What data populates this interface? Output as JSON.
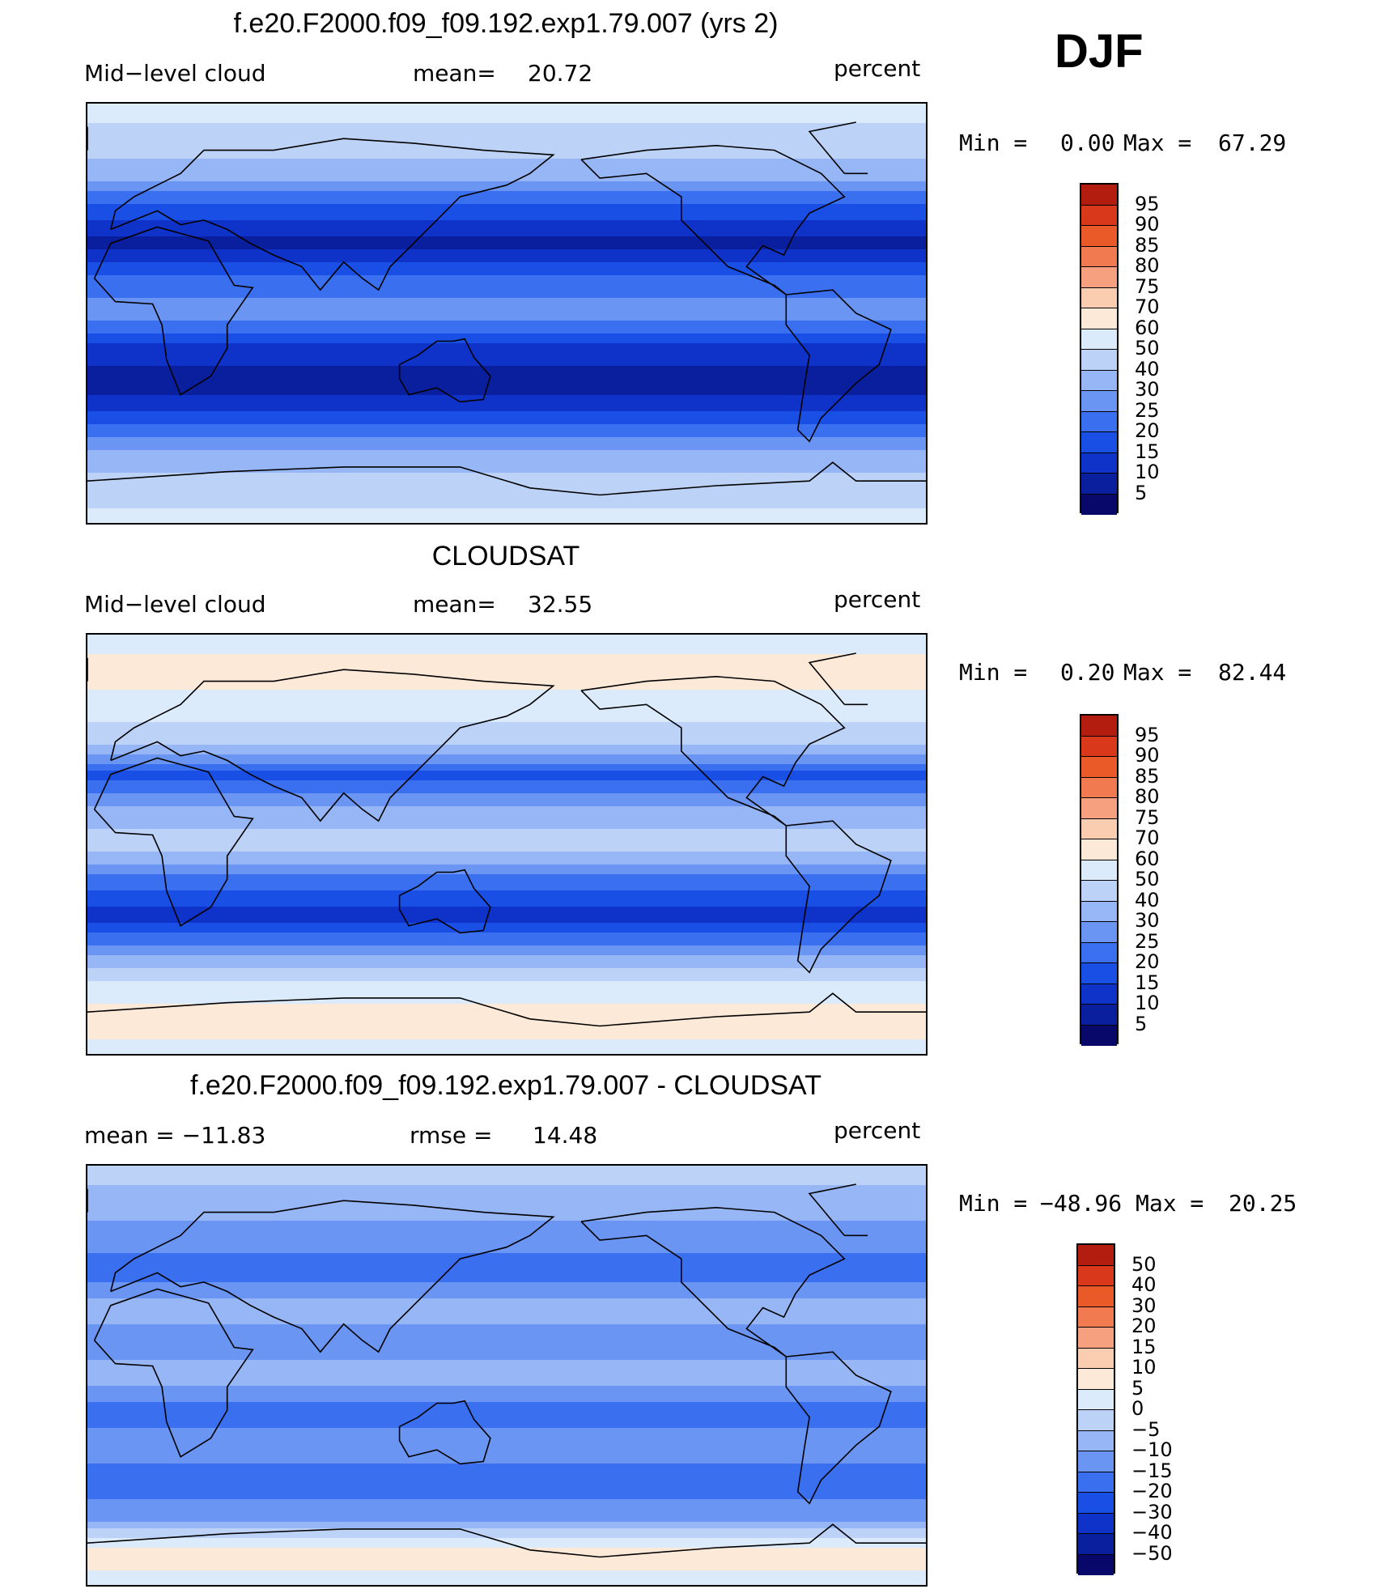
{
  "season": "DJF",
  "colors": {
    "cloud_scale": [
      "#08086b",
      "#0a1f9e",
      "#0f32c8",
      "#1a4fe6",
      "#3a6ff0",
      "#6a95f2",
      "#96b6f5",
      "#bcd2f7",
      "#dcebfb",
      "#fde9d8",
      "#fbcdb0",
      "#f6a080",
      "#f27a50",
      "#ea5a28",
      "#d9381a",
      "#b31d10",
      "#8a0808"
    ],
    "diff_scale": [
      "#08086b",
      "#0a1f9e",
      "#0f32c8",
      "#1a4fe6",
      "#3a6ff0",
      "#6a95f2",
      "#96b6f5",
      "#bcd2f7",
      "#dcebfb",
      "#fde9d8",
      "#fbcdb0",
      "#f6a080",
      "#f27a50",
      "#ea5a28",
      "#d9381a",
      "#b31d10",
      "#8a0808"
    ]
  },
  "chart_data": [
    {
      "type": "heatmap",
      "title": "f.e20.F2000.f09_f09.192.exp1.79.007 (yrs 2)",
      "variable": "Mid−level cloud",
      "stat_left": "",
      "stat_mid_label": "mean=",
      "stat_mid_value": "20.72",
      "units": "percent",
      "min_label": "Min =",
      "min_value": "0.00",
      "max_label": "Max =",
      "max_value": "67.29",
      "colorbar_levels": [
        "5",
        "10",
        "15",
        "20",
        "25",
        "30",
        "40",
        "50",
        "60",
        "70",
        "75",
        "80",
        "85",
        "90",
        "95"
      ],
      "bands_by_latitude": [
        {
          "lat": 90,
          "level": 8
        },
        {
          "lat": 75,
          "level": 7
        },
        {
          "lat": 60,
          "level": 6
        },
        {
          "lat": 45,
          "level": 3
        },
        {
          "lat": 30,
          "level": 1
        },
        {
          "lat": 15,
          "level": 4
        },
        {
          "lat": 0,
          "level": 5
        },
        {
          "lat": -15,
          "level": 2
        },
        {
          "lat": -30,
          "level": 1
        },
        {
          "lat": -45,
          "level": 3
        },
        {
          "lat": -60,
          "level": 6
        },
        {
          "lat": -75,
          "level": 7
        },
        {
          "lat": -90,
          "level": 8
        }
      ]
    },
    {
      "type": "heatmap",
      "title": "CLOUDSAT",
      "variable": "Mid−level cloud",
      "stat_left": "",
      "stat_mid_label": "mean=",
      "stat_mid_value": "32.55",
      "units": "percent",
      "min_label": "Min =",
      "min_value": "0.20",
      "max_label": "Max =",
      "max_value": "82.44",
      "colorbar_levels": [
        "5",
        "10",
        "15",
        "20",
        "25",
        "30",
        "40",
        "50",
        "60",
        "70",
        "75",
        "80",
        "85",
        "90",
        "95"
      ],
      "bands_by_latitude": [
        {
          "lat": 90,
          "level": 8
        },
        {
          "lat": 75,
          "level": 9
        },
        {
          "lat": 60,
          "level": 8
        },
        {
          "lat": 45,
          "level": 7
        },
        {
          "lat": 30,
          "level": 3
        },
        {
          "lat": 15,
          "level": 6
        },
        {
          "lat": 0,
          "level": 7
        },
        {
          "lat": -15,
          "level": 4
        },
        {
          "lat": -30,
          "level": 2
        },
        {
          "lat": -45,
          "level": 5
        },
        {
          "lat": -60,
          "level": 8
        },
        {
          "lat": -75,
          "level": 9
        },
        {
          "lat": -90,
          "level": 8
        }
      ]
    },
    {
      "type": "heatmap",
      "title": "f.e20.F2000.f09_f09.192.exp1.79.007 - CLOUDSAT",
      "variable": "",
      "stat_left": "mean = −11.83",
      "stat_mid_label": "rmse =",
      "stat_mid_value": "14.48",
      "units": "percent",
      "min_label": "Min =",
      "min_value": "−48.96",
      "max_label": "Max =",
      "max_value": "20.25",
      "colorbar_levels": [
        "−50",
        "−40",
        "−30",
        "−20",
        "−15",
        "−10",
        "−5",
        "0",
        "5",
        "10",
        "15",
        "20",
        "30",
        "40",
        "50"
      ],
      "bands_by_latitude": [
        {
          "lat": 90,
          "level": 7
        },
        {
          "lat": 75,
          "level": 6
        },
        {
          "lat": 60,
          "level": 5
        },
        {
          "lat": 45,
          "level": 4
        },
        {
          "lat": 30,
          "level": 6
        },
        {
          "lat": 15,
          "level": 5
        },
        {
          "lat": 0,
          "level": 6
        },
        {
          "lat": -15,
          "level": 4
        },
        {
          "lat": -30,
          "level": 5
        },
        {
          "lat": -45,
          "level": 4
        },
        {
          "lat": -60,
          "level": 5
        },
        {
          "lat": -75,
          "level": 9
        },
        {
          "lat": -90,
          "level": 8
        }
      ]
    }
  ]
}
